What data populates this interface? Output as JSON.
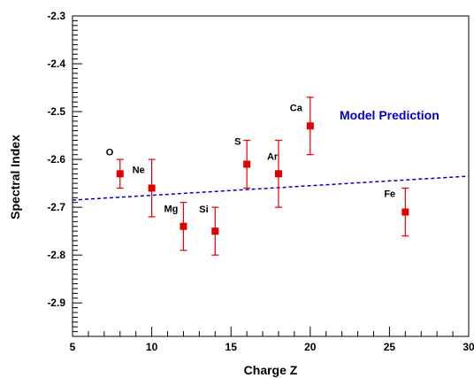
{
  "chart_data": {
    "type": "scatter",
    "xlabel": "Charge Z",
    "ylabel": "Spectral Index",
    "xlim": [
      5,
      30
    ],
    "ylim": [
      -2.97,
      -2.3
    ],
    "x_ticks": [
      5,
      10,
      15,
      20,
      25,
      30
    ],
    "y_ticks": [
      -2.9,
      -2.8,
      -2.7,
      -2.6,
      -2.5,
      -2.4,
      -2.3
    ],
    "grid": false,
    "series": [
      {
        "marker": "square",
        "color": "#e00000",
        "points": [
          {
            "label": "O",
            "x": 8,
            "y": -2.63,
            "err": 0.03
          },
          {
            "label": "Ne",
            "x": 10,
            "y": -2.66,
            "err": 0.06
          },
          {
            "label": "Mg",
            "x": 12,
            "y": -2.74,
            "err": 0.05
          },
          {
            "label": "Si",
            "x": 14,
            "y": -2.75,
            "err": 0.05
          },
          {
            "label": "S",
            "x": 16,
            "y": -2.61,
            "err": 0.05
          },
          {
            "label": "Ar",
            "x": 18,
            "y": -2.63,
            "err": 0.07
          },
          {
            "label": "Ca",
            "x": 20,
            "y": -2.53,
            "err": 0.06
          },
          {
            "label": "Fe",
            "x": 26,
            "y": -2.71,
            "err": 0.05
          }
        ]
      },
      {
        "name": "Model Prediction",
        "style": "dashed-line",
        "color": "#0000cc",
        "x": [
          5,
          30
        ],
        "y": [
          -2.685,
          -2.635
        ]
      }
    ],
    "legend": {
      "label": "Model Prediction",
      "placement": "top-right"
    }
  }
}
